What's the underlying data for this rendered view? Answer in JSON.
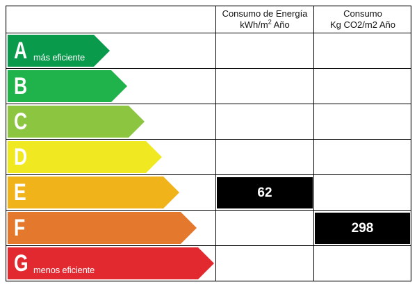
{
  "columns": {
    "energy": {
      "line1": "Consumo de Energía",
      "line2_prefix": "kWh/m",
      "line2_sup": "2",
      "line2_suffix": " Año"
    },
    "co2": {
      "line1": "Consumo",
      "line2": "Kg CO2/m2 Año"
    }
  },
  "ratings": [
    {
      "letter": "A",
      "label": "más eficiente",
      "color": "#0a9a4c"
    },
    {
      "letter": "B",
      "label": "",
      "color": "#20b24b"
    },
    {
      "letter": "C",
      "label": "",
      "color": "#8cc540"
    },
    {
      "letter": "D",
      "label": "",
      "color": "#f0e820"
    },
    {
      "letter": "E",
      "label": "",
      "color": "#f0b41a"
    },
    {
      "letter": "F",
      "label": "",
      "color": "#e4782c"
    },
    {
      "letter": "G",
      "label": "menos eficiente",
      "color": "#e2292f"
    }
  ],
  "values": {
    "energy": {
      "rating": "E",
      "value": "62"
    },
    "co2": {
      "rating": "F",
      "value": "298"
    }
  }
}
